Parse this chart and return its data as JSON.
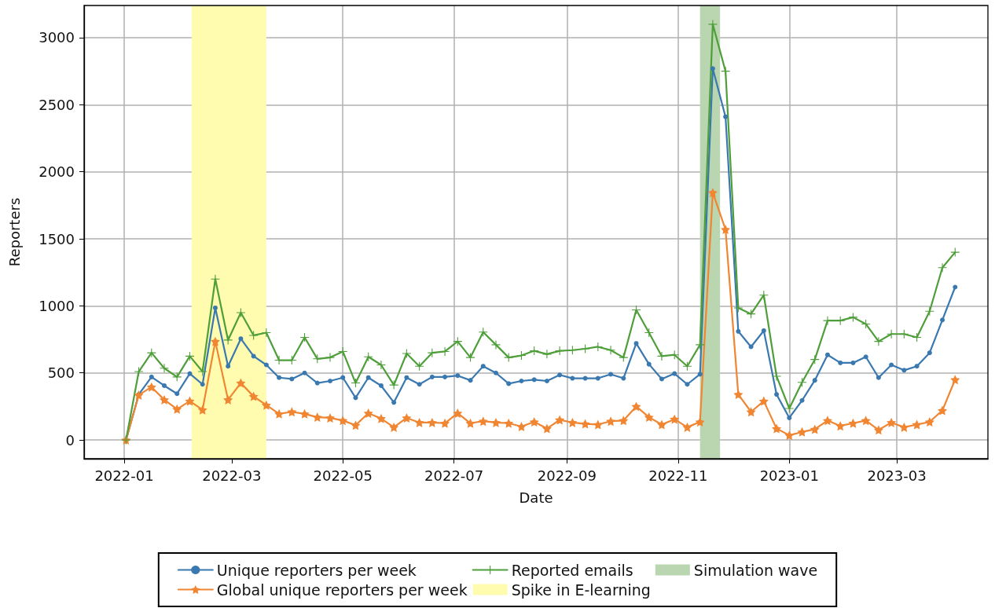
{
  "chart_data": {
    "type": "line",
    "xlabel": "Date",
    "ylabel": "Reporters",
    "x": [
      "2022-01-02",
      "2022-01-09",
      "2022-01-16",
      "2022-01-23",
      "2022-01-30",
      "2022-02-06",
      "2022-02-13",
      "2022-02-20",
      "2022-02-27",
      "2022-03-06",
      "2022-03-13",
      "2022-03-20",
      "2022-03-27",
      "2022-04-03",
      "2022-04-10",
      "2022-04-17",
      "2022-04-24",
      "2022-05-01",
      "2022-05-08",
      "2022-05-15",
      "2022-05-22",
      "2022-05-29",
      "2022-06-05",
      "2022-06-12",
      "2022-06-19",
      "2022-06-26",
      "2022-07-03",
      "2022-07-10",
      "2022-07-17",
      "2022-07-24",
      "2022-07-31",
      "2022-08-07",
      "2022-08-14",
      "2022-08-21",
      "2022-08-28",
      "2022-09-04",
      "2022-09-11",
      "2022-09-18",
      "2022-09-25",
      "2022-10-02",
      "2022-10-09",
      "2022-10-16",
      "2022-10-23",
      "2022-10-30",
      "2022-11-06",
      "2022-11-13",
      "2022-11-20",
      "2022-11-27",
      "2022-12-04",
      "2022-12-11",
      "2022-12-18",
      "2022-12-25",
      "2023-01-01",
      "2023-01-08",
      "2023-01-15",
      "2023-01-22",
      "2023-01-29",
      "2023-02-05",
      "2023-02-12",
      "2023-02-19",
      "2023-02-26",
      "2023-03-05",
      "2023-03-12",
      "2023-03-19",
      "2023-03-26",
      "2023-04-02"
    ],
    "series": [
      {
        "name": "Unique reporters per week",
        "color": "#3a78b0",
        "marker": "circle",
        "values": [
          0,
          340,
          470,
          405,
          345,
          495,
          415,
          985,
          550,
          755,
          625,
          560,
          465,
          455,
          500,
          425,
          440,
          465,
          315,
          465,
          405,
          280,
          465,
          415,
          470,
          470,
          480,
          445,
          550,
          500,
          420,
          440,
          450,
          440,
          485,
          460,
          460,
          460,
          490,
          460,
          720,
          565,
          455,
          495,
          415,
          490,
          2770,
          2410,
          810,
          695,
          815,
          340,
          165,
          295,
          445,
          635,
          575,
          575,
          620,
          465,
          560,
          520,
          550,
          650,
          895,
          1140
        ]
      },
      {
        "name": "Global unique reporters per week",
        "color": "#f08532",
        "marker": "star",
        "values": [
          0,
          335,
          395,
          300,
          230,
          290,
          225,
          735,
          300,
          425,
          325,
          260,
          195,
          210,
          195,
          170,
          165,
          145,
          110,
          200,
          160,
          95,
          165,
          130,
          130,
          125,
          200,
          125,
          140,
          130,
          125,
          100,
          135,
          85,
          150,
          130,
          120,
          115,
          140,
          145,
          250,
          170,
          115,
          155,
          95,
          135,
          1845,
          1570,
          340,
          210,
          290,
          85,
          35,
          60,
          80,
          145,
          105,
          125,
          145,
          75,
          130,
          95,
          115,
          135,
          220,
          450
        ]
      },
      {
        "name": "Reported emails",
        "color": "#4e9e3a",
        "marker": "cross",
        "values": [
          0,
          510,
          650,
          535,
          470,
          625,
          510,
          1200,
          745,
          950,
          780,
          800,
          595,
          595,
          765,
          605,
          615,
          660,
          425,
          620,
          560,
          410,
          645,
          550,
          650,
          660,
          735,
          615,
          805,
          710,
          615,
          630,
          665,
          640,
          665,
          670,
          680,
          695,
          670,
          615,
          970,
          800,
          625,
          635,
          550,
          710,
          3100,
          2750,
          985,
          940,
          1080,
          475,
          235,
          430,
          600,
          890,
          890,
          915,
          865,
          735,
          790,
          790,
          765,
          960,
          1285,
          1400
        ]
      }
    ],
    "bands": [
      {
        "axis": "x",
        "from": "2022-02-07",
        "to": "2022-03-20",
        "label": "Spike in E-learning",
        "color": "#fffcb0"
      },
      {
        "axis": "x",
        "from": "2022-11-13",
        "to": "2022-11-24",
        "label": "Simulation wave",
        "color": "#b9d6b0"
      }
    ],
    "xlim": [
      "2021-12-10",
      "2023-04-20"
    ],
    "xticks": [
      "2022-01",
      "2022-03",
      "2022-05",
      "2022-07",
      "2022-09",
      "2022-11",
      "2023-01",
      "2023-03"
    ],
    "ylim": [
      -140,
      3240
    ],
    "yticks": [
      0,
      500,
      1000,
      1500,
      2000,
      2500,
      3000
    ],
    "grid": true,
    "legend": "bottom",
    "line_style": "solid"
  }
}
